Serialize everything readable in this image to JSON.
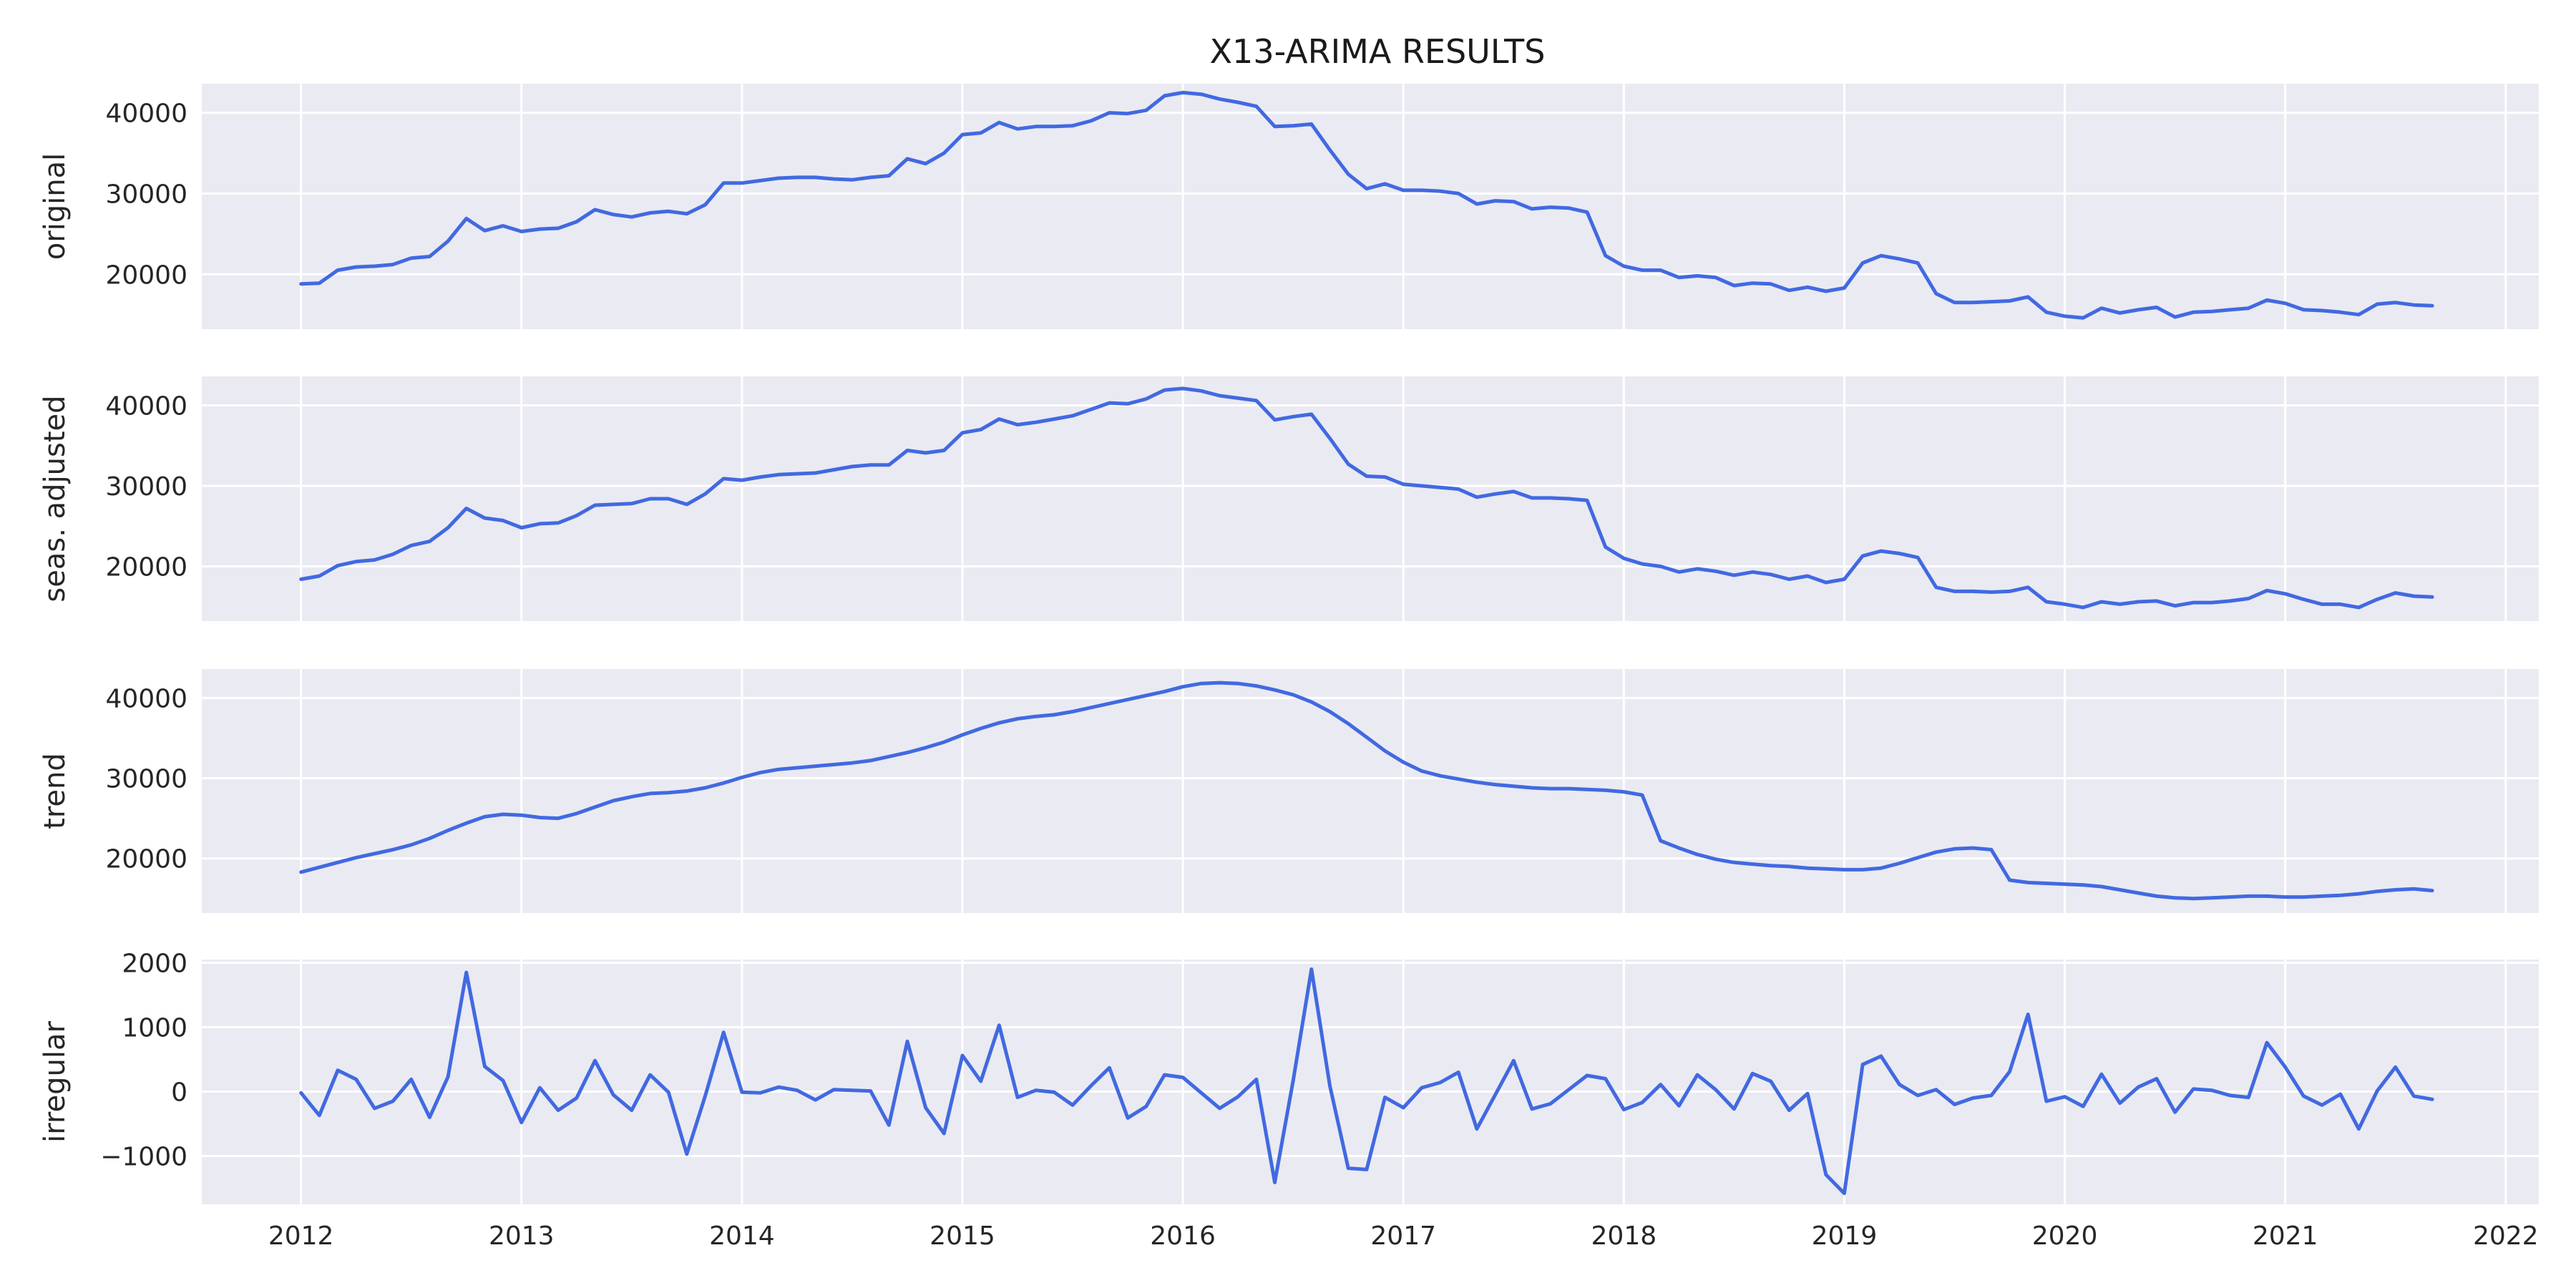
{
  "chart_data": {
    "type": "line",
    "title": "X13-ARIMA RESULTS",
    "line_color": "#4169e1",
    "x_start": "2012-01",
    "x_frequency": "monthly",
    "xlim": [
      2011.55,
      2022.15
    ],
    "xticks": [
      "2012",
      "2013",
      "2014",
      "2015",
      "2016",
      "2017",
      "2018",
      "2019",
      "2020",
      "2021",
      "2022"
    ],
    "grid": true,
    "panels": [
      {
        "ylabel": "original",
        "ylim": [
          13200,
          43600
        ],
        "yticks": [
          "20000",
          "30000",
          "40000"
        ],
        "values": [
          18800,
          18900,
          20500,
          20900,
          21000,
          21200,
          22000,
          22200,
          24100,
          26900,
          25400,
          26000,
          25300,
          25600,
          25700,
          26500,
          28000,
          27400,
          27100,
          27600,
          27800,
          27500,
          28600,
          31300,
          31300,
          31600,
          31900,
          32000,
          32000,
          31800,
          31700,
          32000,
          32200,
          34300,
          33700,
          35000,
          37300,
          37500,
          38800,
          38000,
          38300,
          38300,
          38400,
          39000,
          40000,
          39900,
          40300,
          42100,
          42500,
          42300,
          41700,
          41300,
          40800,
          38300,
          38400,
          38600,
          35400,
          32400,
          30600,
          31200,
          30400,
          30400,
          30300,
          30000,
          28700,
          29100,
          29000,
          28100,
          28300,
          28200,
          27700,
          22300,
          21000,
          20500,
          20500,
          19600,
          19800,
          19600,
          18600,
          18900,
          18800,
          18000,
          18400,
          17900,
          18300,
          21400,
          22300,
          21900,
          21400,
          17600,
          16500,
          16500,
          16600,
          16700,
          17200,
          15300,
          14800,
          14600,
          15800,
          15200,
          15600,
          15900,
          14700,
          15300,
          15400,
          15600,
          15800,
          16800,
          16400,
          15600,
          15500,
          15300,
          15000,
          16300,
          16500,
          16200,
          16100
        ],
        "name": "original"
      },
      {
        "ylabel": "seas. adjusted",
        "ylim": [
          13200,
          43600
        ],
        "yticks": [
          "20000",
          "30000",
          "40000"
        ],
        "values": [
          18400,
          18800,
          20100,
          20600,
          20800,
          21500,
          22600,
          23100,
          24800,
          27200,
          26000,
          25700,
          24800,
          25300,
          25400,
          26300,
          27600,
          27700,
          27800,
          28400,
          28400,
          27700,
          29000,
          30900,
          30700,
          31100,
          31400,
          31500,
          31600,
          32000,
          32400,
          32600,
          32600,
          34400,
          34100,
          34400,
          36600,
          37000,
          38300,
          37600,
          37900,
          38300,
          38700,
          39500,
          40300,
          40200,
          40800,
          41900,
          42100,
          41800,
          41200,
          40900,
          40600,
          38200,
          38600,
          38900,
          35900,
          32700,
          31200,
          31100,
          30200,
          30000,
          29800,
          29600,
          28600,
          29000,
          29300,
          28500,
          28500,
          28400,
          28200,
          22400,
          21000,
          20300,
          20000,
          19300,
          19700,
          19400,
          18900,
          19300,
          19000,
          18400,
          18800,
          18000,
          18400,
          21300,
          21900,
          21600,
          21100,
          17400,
          16900,
          16900,
          16800,
          16900,
          17400,
          15600,
          15300,
          14900,
          15600,
          15300,
          15600,
          15700,
          15100,
          15500,
          15500,
          15700,
          16000,
          17000,
          16600,
          15900,
          15300,
          15300,
          14900,
          15900,
          16700,
          16300,
          16200
        ],
        "name": "seas. adjusted"
      },
      {
        "ylabel": "trend",
        "ylim": [
          13200,
          43600
        ],
        "yticks": [
          "20000",
          "30000",
          "40000"
        ],
        "values": [
          18300,
          18900,
          19500,
          20100,
          20600,
          21100,
          21700,
          22500,
          23500,
          24400,
          25200,
          25500,
          25400,
          25100,
          25000,
          25600,
          26400,
          27200,
          27700,
          28100,
          28200,
          28400,
          28800,
          29400,
          30100,
          30700,
          31100,
          31300,
          31500,
          31700,
          31900,
          32200,
          32700,
          33200,
          33800,
          34500,
          35400,
          36200,
          36900,
          37400,
          37700,
          37900,
          38300,
          38800,
          39300,
          39800,
          40300,
          40800,
          41400,
          41800,
          41900,
          41800,
          41500,
          41000,
          40400,
          39500,
          38300,
          36800,
          35100,
          33400,
          32000,
          30900,
          30300,
          29900,
          29500,
          29200,
          29000,
          28800,
          28700,
          28700,
          28600,
          28500,
          28300,
          27900,
          22200,
          21300,
          20500,
          19900,
          19500,
          19300,
          19100,
          19000,
          18800,
          18700,
          18600,
          18600,
          18800,
          19400,
          20100,
          20800,
          21200,
          21300,
          21100,
          17300,
          17000,
          16900,
          16800,
          16700,
          16500,
          16100,
          15700,
          15300,
          15100,
          15000,
          15100,
          15200,
          15300,
          15300,
          15200,
          15200,
          15300,
          15400,
          15600,
          15900,
          16100,
          16200,
          16000
        ],
        "name": "trend"
      },
      {
        "ylabel": "irregular",
        "ylim": [
          -1750,
          2050
        ],
        "yticks": [
          "−1000",
          "0",
          "1000",
          "2000"
        ],
        "values": [
          -20,
          -370,
          330,
          190,
          -260,
          -150,
          190,
          -400,
          230,
          1850,
          390,
          170,
          -480,
          60,
          -290,
          -100,
          480,
          -50,
          -290,
          260,
          -10,
          -970,
          -70,
          920,
          -10,
          -20,
          70,
          20,
          -130,
          30,
          20,
          10,
          -520,
          780,
          -250,
          -650,
          560,
          160,
          1030,
          -90,
          20,
          -10,
          -210,
          90,
          370,
          -410,
          -230,
          260,
          220,
          -20,
          -260,
          -80,
          190,
          -1410,
          170,
          1900,
          90,
          -1190,
          -1210,
          -90,
          -250,
          60,
          140,
          300,
          -580,
          -50,
          480,
          -270,
          -190,
          30,
          250,
          200,
          -280,
          -170,
          110,
          -220,
          260,
          30,
          -270,
          280,
          160,
          -290,
          -30,
          -1290,
          -1580,
          420,
          550,
          110,
          -60,
          30,
          -200,
          -100,
          -60,
          310,
          1200,
          -150,
          -80,
          -230,
          270,
          -180,
          70,
          200,
          -320,
          40,
          20,
          -60,
          -90,
          760,
          380,
          -70,
          -210,
          -40,
          -580,
          10,
          380,
          -70,
          -120
        ],
        "name": "irregular"
      }
    ]
  }
}
